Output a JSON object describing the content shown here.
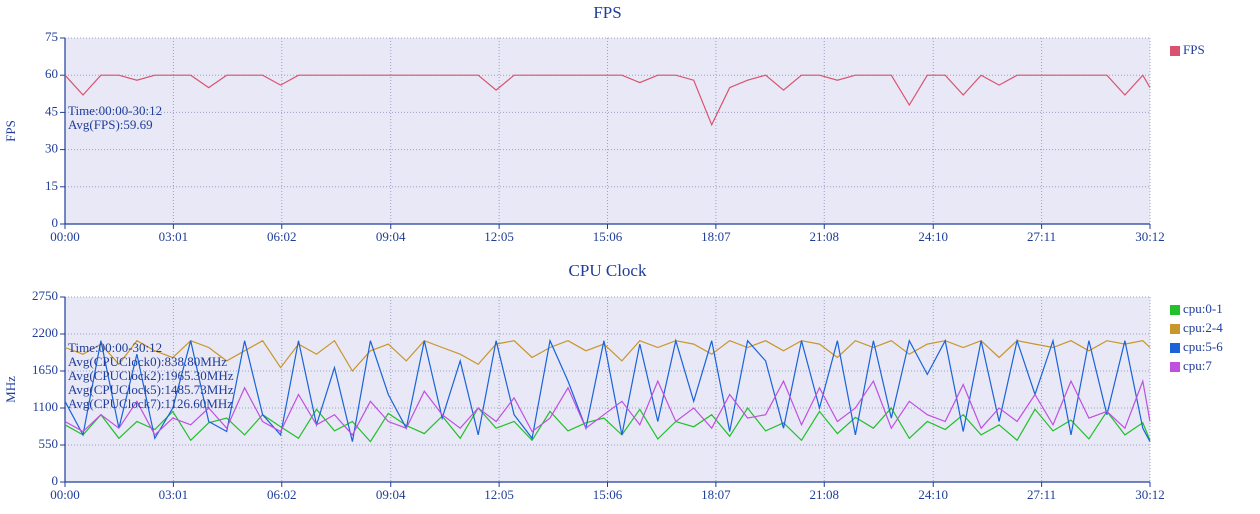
{
  "chart_data": [
    {
      "type": "line",
      "title": "FPS",
      "ylabel": "FPS",
      "grid": true,
      "legend": "right",
      "x": [
        0,
        30,
        60,
        90,
        120,
        150,
        180,
        210,
        240,
        270,
        300,
        330,
        360,
        390,
        420,
        450,
        480,
        510,
        540,
        570,
        600,
        630,
        660,
        690,
        720,
        750,
        780,
        810,
        840,
        870,
        900,
        930,
        960,
        990,
        1020,
        1050,
        1080,
        1110,
        1140,
        1170,
        1200,
        1230,
        1260,
        1290,
        1320,
        1350,
        1380,
        1410,
        1440,
        1470,
        1500,
        1530,
        1560,
        1590,
        1620,
        1650,
        1680,
        1710,
        1740,
        1770,
        1800,
        1812
      ],
      "xlim": [
        0,
        1812
      ],
      "xticks": [
        {
          "value": 0,
          "label": "00:00"
        },
        {
          "value": 181,
          "label": "03:01"
        },
        {
          "value": 362,
          "label": "06:02"
        },
        {
          "value": 544,
          "label": "09:04"
        },
        {
          "value": 725,
          "label": "12:05"
        },
        {
          "value": 906,
          "label": "15:06"
        },
        {
          "value": 1087,
          "label": "18:07"
        },
        {
          "value": 1268,
          "label": "21:08"
        },
        {
          "value": 1450,
          "label": "24:10"
        },
        {
          "value": 1631,
          "label": "27:11"
        },
        {
          "value": 1812,
          "label": "30:12"
        }
      ],
      "ylim": [
        0,
        75
      ],
      "yticks": [
        0,
        15,
        30,
        45,
        60,
        75
      ],
      "annotations": [
        "Time:00:00-30:12",
        "Avg(FPS):59.69"
      ],
      "series": [
        {
          "name": "FPS",
          "color": "#d9536e",
          "values": [
            60,
            52,
            60,
            60,
            58,
            60,
            60,
            60,
            55,
            60,
            60,
            60,
            56,
            60,
            60,
            60,
            60,
            60,
            60,
            60,
            60,
            60,
            60,
            60,
            54,
            60,
            60,
            60,
            60,
            60,
            60,
            60,
            57,
            60,
            60,
            58,
            40,
            55,
            58,
            60,
            54,
            60,
            60,
            58,
            60,
            60,
            60,
            48,
            60,
            60,
            52,
            60,
            56,
            60,
            60,
            60,
            60,
            60,
            60,
            52,
            60,
            55
          ]
        }
      ]
    },
    {
      "type": "line",
      "title": "CPU Clock",
      "ylabel": "MHz",
      "grid": true,
      "legend": "right",
      "x": [
        0,
        30,
        60,
        90,
        120,
        150,
        180,
        210,
        240,
        270,
        300,
        330,
        360,
        390,
        420,
        450,
        480,
        510,
        540,
        570,
        600,
        630,
        660,
        690,
        720,
        750,
        780,
        810,
        840,
        870,
        900,
        930,
        960,
        990,
        1020,
        1050,
        1080,
        1110,
        1140,
        1170,
        1200,
        1230,
        1260,
        1290,
        1320,
        1350,
        1380,
        1410,
        1440,
        1470,
        1500,
        1530,
        1560,
        1590,
        1620,
        1650,
        1680,
        1710,
        1740,
        1770,
        1800,
        1812
      ],
      "xlim": [
        0,
        1812
      ],
      "xticks": [
        {
          "value": 0,
          "label": "00:00"
        },
        {
          "value": 181,
          "label": "03:01"
        },
        {
          "value": 362,
          "label": "06:02"
        },
        {
          "value": 544,
          "label": "09:04"
        },
        {
          "value": 725,
          "label": "12:05"
        },
        {
          "value": 906,
          "label": "15:06"
        },
        {
          "value": 1087,
          "label": "18:07"
        },
        {
          "value": 1268,
          "label": "21:08"
        },
        {
          "value": 1450,
          "label": "24:10"
        },
        {
          "value": 1631,
          "label": "27:11"
        },
        {
          "value": 1812,
          "label": "30:12"
        }
      ],
      "ylim": [
        0,
        2750
      ],
      "yticks": [
        0,
        550,
        1100,
        1650,
        2200,
        2750
      ],
      "annotations": [
        "Time:00:00-30:12",
        "Avg(CPUClock0):838.80MHz",
        "Avg(CPUClock2):1965.30MHz",
        "Avg(CPUClock5):1485.73MHz",
        "Avg(CPUClock7):1126.60MHz"
      ],
      "series": [
        {
          "name": "cpu:0-1",
          "color": "#22c02a",
          "values": [
            850,
            700,
            1000,
            650,
            900,
            780,
            1050,
            620,
            880,
            950,
            700,
            1000,
            820,
            650,
            1080,
            760,
            900,
            600,
            1020,
            840,
            720,
            980,
            650,
            1100,
            800,
            900,
            620,
            1050,
            760,
            880,
            950,
            700,
            1080,
            640,
            900,
            820,
            1000,
            680,
            1100,
            760,
            880,
            620,
            1050,
            720,
            960,
            800,
            1100,
            650,
            900,
            780,
            1000,
            700,
            850,
            620,
            1080,
            760,
            920,
            640,
            1050,
            700,
            880,
            620
          ]
        },
        {
          "name": "cpu:2-4",
          "color": "#c8962a",
          "values": [
            2000,
            1900,
            2050,
            1750,
            2100,
            1950,
            1850,
            2100,
            2000,
            1800,
            1950,
            2100,
            1700,
            2050,
            1900,
            2100,
            1650,
            1950,
            2050,
            1800,
            2100,
            2000,
            1900,
            1750,
            2050,
            2100,
            1850,
            2000,
            2100,
            1950,
            2050,
            1800,
            2100,
            2000,
            2100,
            2050,
            1900,
            2100,
            2000,
            2100,
            1950,
            2100,
            2050,
            1850,
            2100,
            2000,
            2100,
            1900,
            2050,
            2100,
            2000,
            2100,
            1850,
            2100,
            2050,
            2000,
            2100,
            1950,
            2100,
            2050,
            2100,
            2000
          ]
        },
        {
          "name": "cpu:5-6",
          "color": "#1a63d8",
          "values": [
            1200,
            700,
            2100,
            800,
            1900,
            650,
            1100,
            2100,
            900,
            750,
            2100,
            1000,
            700,
            2100,
            850,
            1700,
            600,
            2100,
            1300,
            800,
            2100,
            950,
            1800,
            700,
            2100,
            1000,
            650,
            2100,
            1500,
            800,
            2100,
            700,
            2050,
            900,
            2100,
            1200,
            2100,
            750,
            2100,
            1800,
            800,
            2100,
            1100,
            2100,
            700,
            2100,
            950,
            2100,
            1600,
            2100,
            750,
            2100,
            900,
            2100,
            1300,
            2100,
            700,
            2100,
            1000,
            2100,
            800,
            600
          ]
        },
        {
          "name": "cpu:7",
          "color": "#c050e0",
          "values": [
            900,
            750,
            1000,
            800,
            1200,
            700,
            950,
            850,
            1100,
            800,
            1400,
            900,
            750,
            1300,
            850,
            1000,
            700,
            1200,
            900,
            800,
            1350,
            1000,
            800,
            1100,
            900,
            1250,
            750,
            950,
            1400,
            800,
            1000,
            1200,
            850,
            1500,
            900,
            1100,
            800,
            1300,
            950,
            1000,
            1500,
            850,
            1400,
            900,
            1100,
            1500,
            800,
            1200,
            1000,
            900,
            1450,
            800,
            1100,
            900,
            1300,
            850,
            1500,
            950,
            1050,
            800,
            1500,
            900
          ]
        }
      ]
    }
  ]
}
